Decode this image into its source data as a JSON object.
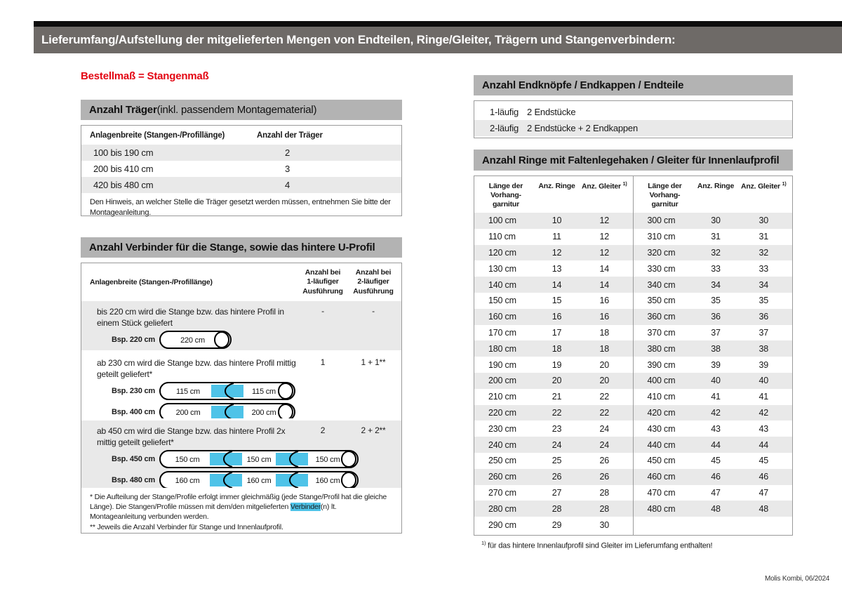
{
  "colors": {
    "accent_red": "#e30613",
    "connector_blue": "#4ec3e8",
    "banner_gray": "#6e6a67",
    "section_bar_gray": "#b3b3b3",
    "row_shade": "#e9e9e9"
  },
  "page": {
    "title": "Lieferumfang/Aufstellung der mitgelieferten Mengen von Endteilen, Ringe/Gleiter, Trägern und Stangenverbindern:",
    "footer": "Molis Kombi, 06/2024"
  },
  "left": {
    "order_note": "Bestellmaß = Stangenmaß",
    "traeger": {
      "title_bold": "Anzahl Träger",
      "title_suffix": " (inkl. passendem Montagematerial)",
      "col1": "Anlagenbreite (Stangen-/Profillänge)",
      "col2": "Anzahl der Träger",
      "rows": [
        [
          "100 bis 190 cm",
          "2"
        ],
        [
          "200 bis 410 cm",
          "3"
        ],
        [
          "420 bis 480 cm",
          "4"
        ]
      ],
      "note": "Den Hinweis, an welcher Stelle die Träger gesetzt werden müssen, entnehmen Sie bitte der Montageanleitung."
    },
    "verbinder": {
      "title": "Anzahl Verbinder für die Stange, sowie das hintere U-Profil",
      "col1": "Anlagenbreite (Stangen-/Profillänge)",
      "col2": "Anzahl bei\n1-läufiger\nAusführung",
      "col3": "Anzahl bei\n2-läufiger\nAusführung",
      "rows": [
        {
          "text": "bis 220 cm wird die Stange bzw. das hintere Profil in einem Stück geliefert",
          "v1": "-",
          "v2": "-",
          "diagrams": [
            {
              "label": "Bsp. 220 cm",
              "segments": [
                "220 cm"
              ]
            }
          ]
        },
        {
          "text": "ab 230 cm wird die Stange bzw. das hintere Profil mittig geteilt geliefert*",
          "v1": "1",
          "v2": "1 + 1**",
          "diagrams": [
            {
              "label": "Bsp. 230 cm",
              "segments": [
                "115 cm",
                "115 cm"
              ]
            },
            {
              "label": "Bsp. 400 cm",
              "segments": [
                "200 cm",
                "200 cm"
              ]
            }
          ]
        },
        {
          "text": "ab 450 cm wird die Stange bzw. das hintere Profil 2x mittig geteilt geliefert*",
          "v1": "2",
          "v2": "2 + 2**",
          "diagrams": [
            {
              "label": "Bsp. 450 cm",
              "segments": [
                "150 cm",
                "150 cm",
                "150 cm"
              ]
            },
            {
              "label": "Bsp. 480 cm",
              "segments": [
                "160 cm",
                "160 cm",
                "160 cm"
              ]
            }
          ]
        }
      ],
      "footnote1_pre": "* Die Aufteilung der Stange/Profile erfolgt immer gleichmäßig (jede Stange/Profil hat die gleiche Länge). Die Stangen/Profile müssen mit dem/den mitgelieferten ",
      "footnote1_highlight": "Verbinder",
      "footnote1_post": "(n) lt. Montageanleitung verbunden werden.",
      "footnote2": "** Jeweils die Anzahl Verbinder für Stange und Innenlaufprofil."
    }
  },
  "right": {
    "endteile": {
      "title": "Anzahl Endknöpfe / Endkappen / Endteile",
      "rows": [
        [
          "1-läufig",
          "2 Endstücke"
        ],
        [
          "2-läufig",
          "2 Endstücke + 2 Endkappen"
        ]
      ]
    },
    "ringe": {
      "title": "Anzahl Ringe mit Faltenlegehaken / Gleiter für Innenlaufprofil",
      "col1": "Länge der\nVorhang-\ngarnitur",
      "col2": "Anz. Ringe",
      "col3": "Anz. Gleiter",
      "col3_sup": "1)",
      "left_rows": [
        [
          "100 cm",
          "10",
          "12"
        ],
        [
          "110 cm",
          "11",
          "12"
        ],
        [
          "120 cm",
          "12",
          "12"
        ],
        [
          "130 cm",
          "13",
          "14"
        ],
        [
          "140 cm",
          "14",
          "14"
        ],
        [
          "150 cm",
          "15",
          "16"
        ],
        [
          "160 cm",
          "16",
          "16"
        ],
        [
          "170 cm",
          "17",
          "18"
        ],
        [
          "180 cm",
          "18",
          "18"
        ],
        [
          "190 cm",
          "19",
          "20"
        ],
        [
          "200 cm",
          "20",
          "20"
        ],
        [
          "210 cm",
          "21",
          "22"
        ],
        [
          "220 cm",
          "22",
          "22"
        ],
        [
          "230 cm",
          "23",
          "24"
        ],
        [
          "240 cm",
          "24",
          "24"
        ],
        [
          "250 cm",
          "25",
          "26"
        ],
        [
          "260 cm",
          "26",
          "26"
        ],
        [
          "270 cm",
          "27",
          "28"
        ],
        [
          "280 cm",
          "28",
          "28"
        ],
        [
          "290 cm",
          "29",
          "30"
        ]
      ],
      "right_rows": [
        [
          "300 cm",
          "30",
          "30"
        ],
        [
          "310 cm",
          "31",
          "31"
        ],
        [
          "320 cm",
          "32",
          "32"
        ],
        [
          "330 cm",
          "33",
          "33"
        ],
        [
          "340 cm",
          "34",
          "34"
        ],
        [
          "350 cm",
          "35",
          "35"
        ],
        [
          "360 cm",
          "36",
          "36"
        ],
        [
          "370 cm",
          "37",
          "37"
        ],
        [
          "380 cm",
          "38",
          "38"
        ],
        [
          "390 cm",
          "39",
          "39"
        ],
        [
          "400 cm",
          "40",
          "40"
        ],
        [
          "410 cm",
          "41",
          "41"
        ],
        [
          "420 cm",
          "42",
          "42"
        ],
        [
          "430 cm",
          "43",
          "43"
        ],
        [
          "440 cm",
          "44",
          "44"
        ],
        [
          "450 cm",
          "45",
          "45"
        ],
        [
          "460 cm",
          "46",
          "46"
        ],
        [
          "470 cm",
          "47",
          "47"
        ],
        [
          "480 cm",
          "48",
          "48"
        ]
      ],
      "footnote_sup": "1)",
      "footnote_text": " für das hintere Innenlaufprofil sind Gleiter im Lieferumfang enthalten!"
    }
  }
}
